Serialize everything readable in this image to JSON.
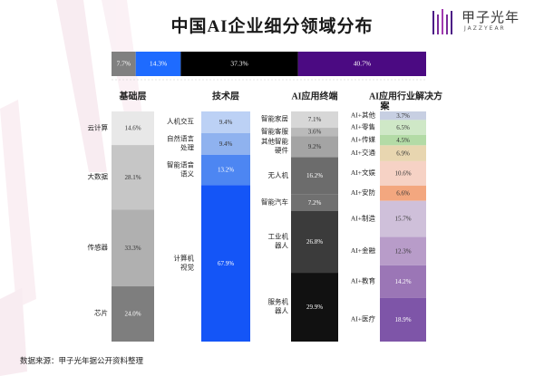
{
  "title": "中国AI企业细分领域分布",
  "brand": {
    "name_cn": "甲子光年",
    "name_en": "JAZZYEAR"
  },
  "source": "数据来源：甲子光年据公开资料整理",
  "colors": {
    "top_bar": [
      "#808080",
      "#1e6bff",
      "#000000",
      "#4b0a82"
    ],
    "foundation": [
      "#e8e8e8",
      "#c6c6c6",
      "#b0b0b0",
      "#7e7e7e"
    ],
    "technology": [
      "#bcd1f5",
      "#8fb2ef",
      "#4d86f2",
      "#1455f7"
    ],
    "terminal": [
      "#d7d7d7",
      "#bababa",
      "#a4a4a4",
      "#6c6c6c",
      "#707070",
      "#3b3b3b",
      "#111111"
    ],
    "industry": [
      "#c7cfe2",
      "#cfe8c7",
      "#b3dba6",
      "#e8d6b0",
      "#f6d2c5",
      "#f3a77f",
      "#cfc0da",
      "#b89cc9",
      "#9b76b6",
      "#7e55a8",
      "#45157f"
    ]
  },
  "chart_data": [
    {
      "type": "bar",
      "orientation": "horizontal-stacked",
      "categories": [
        "基础层",
        "技术层",
        "AI应用终端",
        "AI应用行业解决方案"
      ],
      "values": [
        7.7,
        14.3,
        37.3,
        40.7
      ],
      "value_labels": [
        "7.7%",
        "14.3%",
        "37.3%",
        "40.7%"
      ],
      "unit": "%"
    },
    {
      "type": "bar",
      "orientation": "vertical-stacked",
      "title": "基础层",
      "categories": [
        "云计算",
        "大数据",
        "传感器",
        "芯片"
      ],
      "values": [
        14.6,
        28.1,
        33.3,
        24.0
      ],
      "value_labels": [
        "14.6%",
        "28.1%",
        "33.3%",
        "24.0%"
      ]
    },
    {
      "type": "bar",
      "orientation": "vertical-stacked",
      "title": "技术层",
      "categories": [
        "人机交互",
        "自然语言处理",
        "智能语音语义",
        "计算机视觉"
      ],
      "category_lines": [
        [
          "人机交互"
        ],
        [
          "自然语言",
          "处理"
        ],
        [
          "智能语音",
          "语义"
        ],
        [
          "计算机",
          "视觉"
        ]
      ],
      "values": [
        9.4,
        9.4,
        13.2,
        67.9
      ],
      "value_labels": [
        "9.4%",
        "9.4%",
        "13.2%",
        "67.9%"
      ]
    },
    {
      "type": "bar",
      "orientation": "vertical-stacked",
      "title": "AI应用终端",
      "categories": [
        "智能家居",
        "智能客服",
        "其他智能硬件",
        "无人机",
        "智能汽车",
        "工业机器人",
        "服务机器人"
      ],
      "category_lines": [
        [
          "智能家居"
        ],
        [
          "智能客服"
        ],
        [
          "其他智能",
          "硬件"
        ],
        [
          "无人机"
        ],
        [
          "智能汽车"
        ],
        [
          "工业机",
          "器人"
        ],
        [
          "服务机",
          "器人"
        ]
      ],
      "values": [
        7.1,
        3.6,
        9.2,
        16.2,
        7.2,
        26.8,
        29.9
      ],
      "value_labels": [
        "7.1%",
        "3.6%",
        "9.2%",
        "16.2%",
        "7.2%",
        "26.8%",
        "29.9%"
      ]
    },
    {
      "type": "bar",
      "orientation": "vertical-stacked",
      "title": "AI应用行业解决方案",
      "categories": [
        "AI+其他",
        "AI+零售",
        "AI+传媒",
        "AI+交通",
        "AI+文娱",
        "AI+安防",
        "AI+制造",
        "AI+金融",
        "AI+教育",
        "AI+医疗"
      ],
      "values": [
        3.7,
        6.5,
        4.5,
        6.9,
        10.6,
        6.6,
        15.7,
        12.3,
        14.2,
        18.9
      ],
      "value_labels": [
        "3.7%",
        "6.5%",
        "4.5%",
        "6.9%",
        "10.6%",
        "6.6%",
        "15.7%",
        "12.3%",
        "14.2%",
        "18.9%"
      ]
    }
  ]
}
